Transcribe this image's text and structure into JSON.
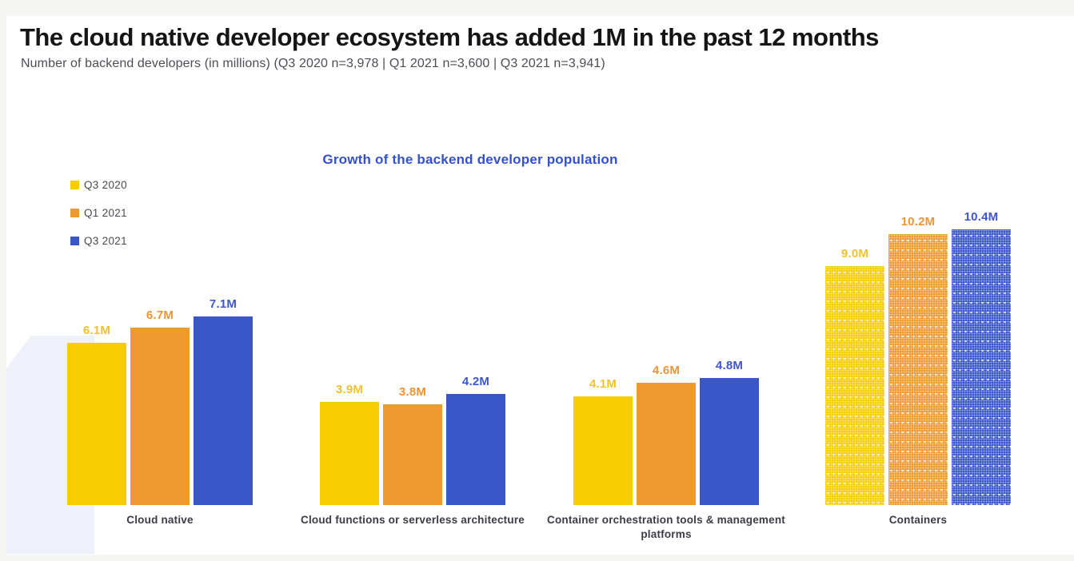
{
  "page": {
    "title": "The cloud native developer ecosystem has added 1M in the past 12 months",
    "subtitle": "Number of backend developers (in millions) (Q3 2020 n=3,978 | Q1 2021 n=3,600 | Q3 2021 n=3,941)"
  },
  "chart_data": {
    "type": "bar",
    "title": "Growth of the backend developer population",
    "categories": [
      "Cloud native",
      "Cloud functions or serverless architecture",
      "Container orchestration tools & management platforms",
      "Containers"
    ],
    "series": [
      {
        "name": "Q3 2020",
        "color": "#F5CD01",
        "label_color": "#F2C22C",
        "values": [
          6.1,
          3.9,
          4.1,
          9.0
        ]
      },
      {
        "name": "Q1 2021",
        "color": "#EE9A30",
        "label_color": "#EF9434",
        "values": [
          6.7,
          3.8,
          4.6,
          10.2
        ]
      },
      {
        "name": "Q3 2021",
        "color": "#3A57C9",
        "label_color": "#3D55CF",
        "values": [
          7.1,
          4.2,
          4.8,
          10.4
        ]
      }
    ],
    "value_label_suffix": "M",
    "value_label_decimals": 1,
    "patterned_categories": [
      "Containers"
    ],
    "legend_position": "top-left",
    "grid": false,
    "xlabel": "",
    "ylabel": "",
    "ylim": [
      0,
      11
    ]
  },
  "colors": {
    "page_band": "#F5F5F3",
    "content_background": "#FFFFFF",
    "title_text": "#151517",
    "subtitle_text": "#4D4D56",
    "chart_title_text": "#3350D2",
    "legend_text": "#4A4A52",
    "category_text": "#3C3C48",
    "decorative_numeral": "#EEF1FA"
  }
}
